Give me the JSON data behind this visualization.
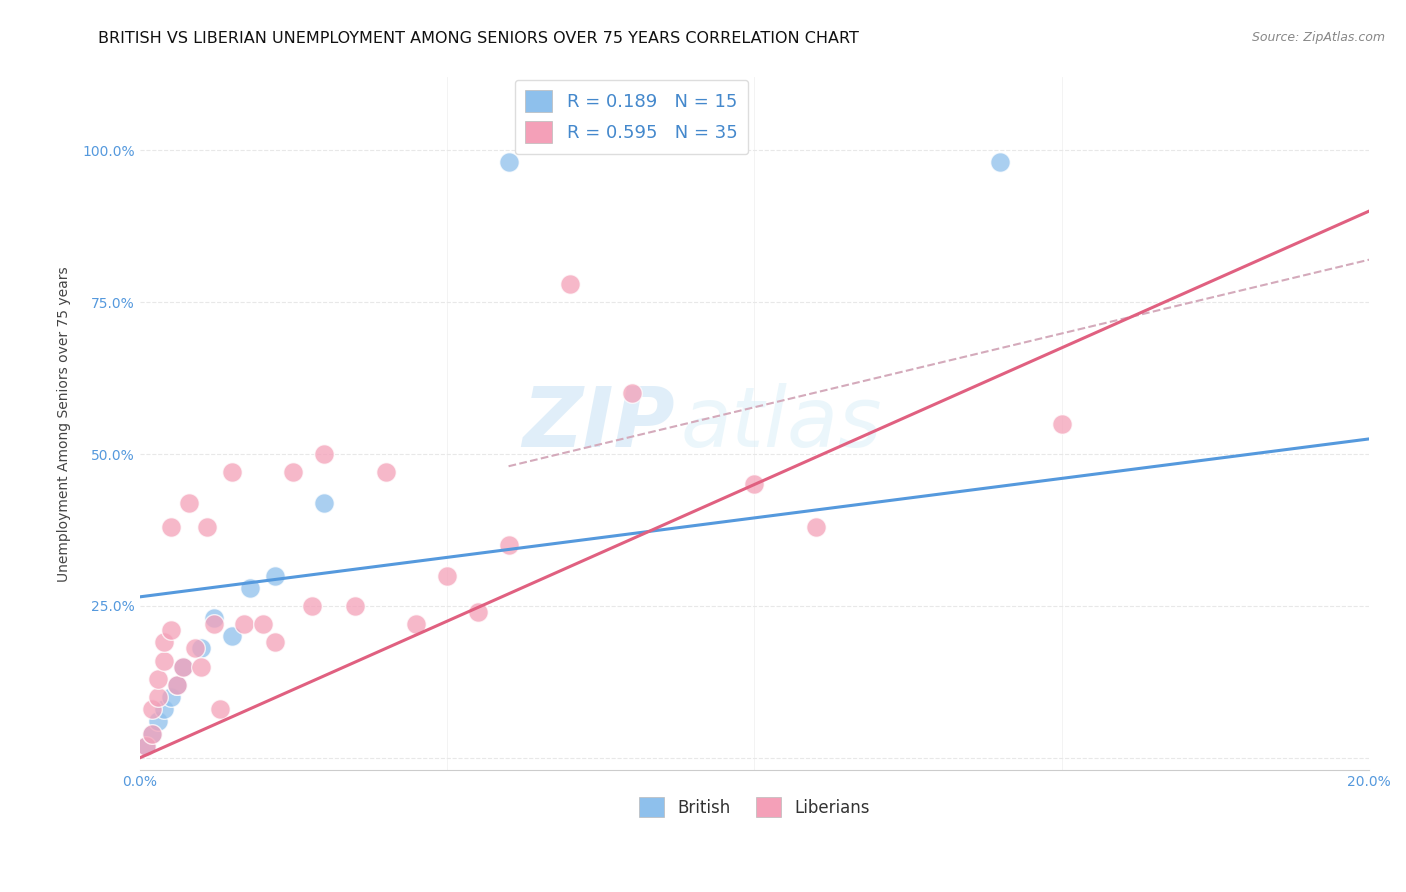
{
  "title": "BRITISH VS LIBERIAN UNEMPLOYMENT AMONG SENIORS OVER 75 YEARS CORRELATION CHART",
  "source": "Source: ZipAtlas.com",
  "ylabel": "Unemployment Among Seniors over 75 years",
  "xlim": [
    0.0,
    0.2
  ],
  "ylim": [
    -0.02,
    1.12
  ],
  "xticks": [
    0.0,
    0.05,
    0.1,
    0.15,
    0.2
  ],
  "xtick_labels": [
    "0.0%",
    "",
    "",
    "",
    "20.0%"
  ],
  "yticks": [
    0.0,
    0.25,
    0.5,
    0.75,
    1.0
  ],
  "ytick_labels": [
    "",
    "25.0%",
    "50.0%",
    "75.0%",
    "100.0%"
  ],
  "british_color": "#8ec0ec",
  "liberian_color": "#f4a0b8",
  "british_line_color": "#5599dd",
  "liberian_line_color": "#e06080",
  "diagonal_color": "#d4aabb",
  "R_british": 0.189,
  "N_british": 15,
  "R_liberian": 0.595,
  "N_liberian": 35,
  "british_x": [
    0.001,
    0.002,
    0.003,
    0.004,
    0.005,
    0.006,
    0.007,
    0.01,
    0.012,
    0.015,
    0.018,
    0.022,
    0.03,
    0.06,
    0.14
  ],
  "british_y": [
    0.02,
    0.04,
    0.06,
    0.08,
    0.1,
    0.12,
    0.15,
    0.18,
    0.23,
    0.2,
    0.28,
    0.3,
    0.42,
    0.98,
    0.98
  ],
  "liberian_x": [
    0.001,
    0.002,
    0.002,
    0.003,
    0.003,
    0.004,
    0.004,
    0.005,
    0.005,
    0.006,
    0.007,
    0.008,
    0.009,
    0.01,
    0.011,
    0.012,
    0.013,
    0.015,
    0.017,
    0.02,
    0.022,
    0.025,
    0.028,
    0.03,
    0.035,
    0.04,
    0.045,
    0.05,
    0.055,
    0.06,
    0.07,
    0.08,
    0.1,
    0.11,
    0.15
  ],
  "liberian_y": [
    0.02,
    0.04,
    0.08,
    0.1,
    0.13,
    0.16,
    0.19,
    0.21,
    0.38,
    0.12,
    0.15,
    0.42,
    0.18,
    0.15,
    0.38,
    0.22,
    0.08,
    0.47,
    0.22,
    0.22,
    0.19,
    0.47,
    0.25,
    0.5,
    0.25,
    0.47,
    0.22,
    0.3,
    0.24,
    0.35,
    0.78,
    0.6,
    0.45,
    0.38,
    0.55
  ],
  "watermark_zip": "ZIP",
  "watermark_atlas": "atlas",
  "bg_color": "#ffffff",
  "grid_color": "#e8e8e8",
  "title_fontsize": 11.5,
  "axis_label_fontsize": 10,
  "tick_fontsize": 10,
  "legend_fontsize": 13
}
